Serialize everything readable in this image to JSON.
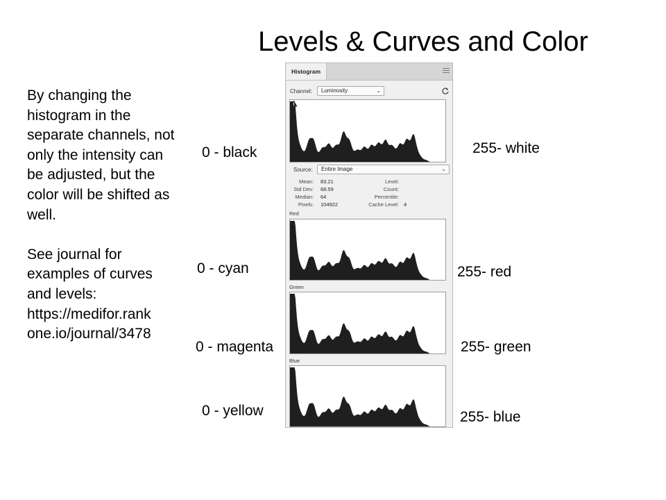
{
  "slide": {
    "title": "Levels & Curves and Color",
    "body_text": "By changing the histogram in the separate channels, not only the intensity can be adjusted, but the color will be shifted as well.\n\nSee journal for examples of curves and levels: https://medifor.rank one.io/journal/3478"
  },
  "labels": {
    "left": [
      "0 - black",
      "0 - cyan",
      "0 - magenta",
      "0 - yellow"
    ],
    "right": [
      "255- white",
      "255- red",
      "255- green",
      "255- blue"
    ]
  },
  "panel": {
    "tab_title": "Histogram",
    "menu_icon": "panel-menu-icon",
    "channel_label": "Channel:",
    "channel_value": "Luminosity",
    "refresh_icon": "refresh-icon",
    "warning_icon": "warning-triangle-icon",
    "source_label": "Source:",
    "source_value": "Entire Image",
    "stats": {
      "mean_label": "Mean:",
      "mean": "83.21",
      "stddev_label": "Std Dev:",
      "stddev": "68.59",
      "median_label": "Median:",
      "median": "64",
      "pixels_label": "Pixels:",
      "pixels": "104922",
      "level_label": "Level:",
      "level": "",
      "count_label": "Count:",
      "count": "",
      "percentile_label": "Percentile:",
      "percentile": "",
      "cache_label": "Cache Level:",
      "cache": "4"
    },
    "channels": [
      {
        "caption": "",
        "color": "#1f1f1f"
      },
      {
        "caption": "Red",
        "color": "#1f1f1f"
      },
      {
        "caption": "Green",
        "color": "#1f1f1f"
      },
      {
        "caption": "Blue",
        "color": "#1f1f1f"
      }
    ]
  }
}
